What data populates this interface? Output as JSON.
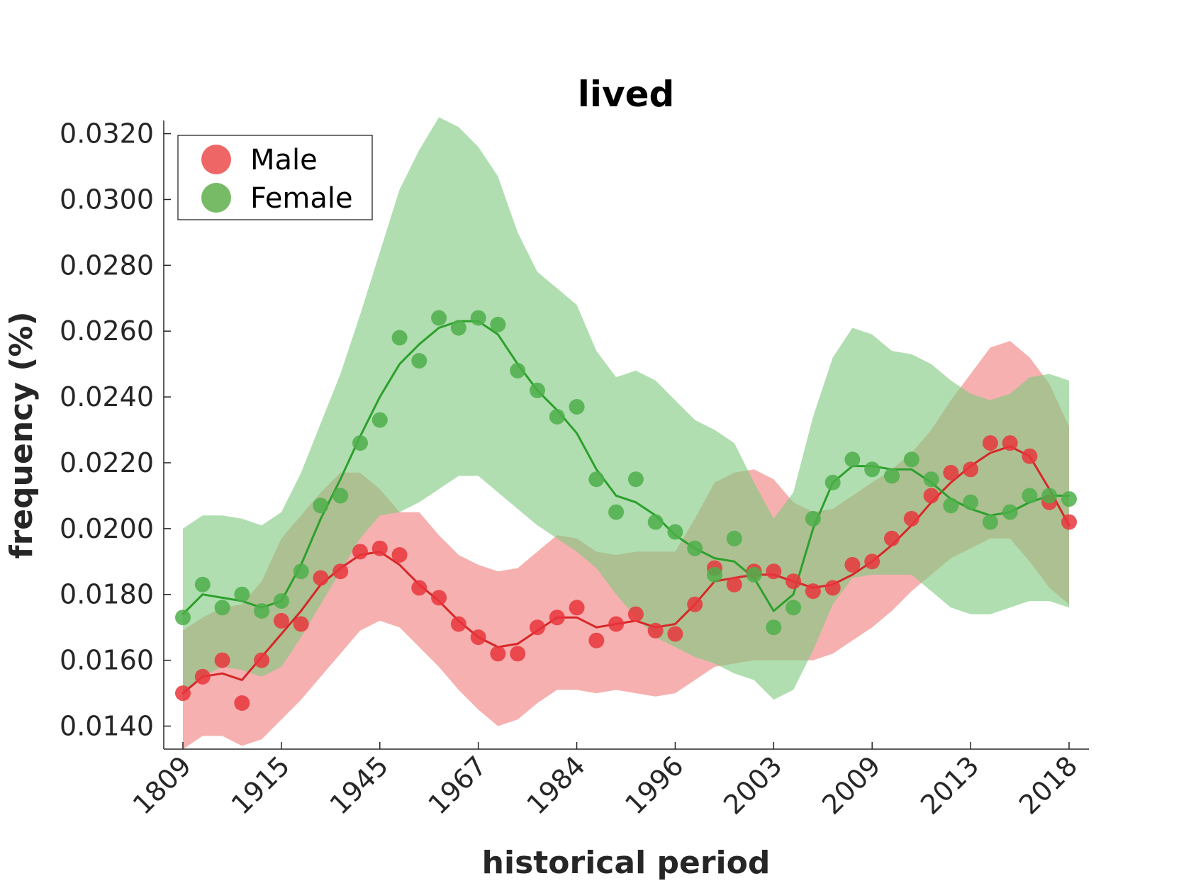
{
  "chart_data": {
    "type": "line",
    "title": "lived",
    "xlabel": "historical period",
    "ylabel": "frequency (%)",
    "ylim": [
      0.0133,
      0.0324
    ],
    "yticks": [
      "0.0140",
      "0.0160",
      "0.0180",
      "0.0200",
      "0.0220",
      "0.0240",
      "0.0260",
      "0.0280",
      "0.0300",
      "0.0320"
    ],
    "ytick_values": [
      0.014,
      0.016,
      0.018,
      0.02,
      0.022,
      0.024,
      0.026,
      0.028,
      0.03,
      0.032
    ],
    "xticks": [
      "1809",
      "1915",
      "1945",
      "1967",
      "1984",
      "1996",
      "2003",
      "2009",
      "2013",
      "2018"
    ],
    "xtick_index": [
      0,
      5,
      10,
      15,
      20,
      25,
      30,
      35,
      40,
      45
    ],
    "n_points": 46,
    "legend": {
      "position": "top-left",
      "entries": [
        "Male",
        "Female"
      ]
    },
    "grid": false,
    "colors": {
      "male_line": "#d62728",
      "male_point": "#e8363c",
      "male_band": "#f08080",
      "female_line": "#2ca02c",
      "female_point": "#4daf4a",
      "female_band": "#7fc97f",
      "legend_male": "#ee6666",
      "legend_female": "#77bb66"
    },
    "series": [
      {
        "name": "Male",
        "points": [
          0.015,
          0.0155,
          0.016,
          0.0147,
          0.016,
          0.0172,
          0.0171,
          0.0185,
          0.0187,
          0.0193,
          0.0194,
          0.0192,
          0.0182,
          0.0179,
          0.0171,
          0.0167,
          0.0162,
          0.0162,
          0.017,
          0.0173,
          0.0176,
          0.0166,
          0.0171,
          0.0174,
          0.0169,
          0.0168,
          0.0177,
          0.0188,
          0.0183,
          0.0187,
          0.0187,
          0.0184,
          0.0181,
          0.0182,
          0.0189,
          0.019,
          0.0197,
          0.0203,
          0.021,
          0.0217,
          0.0218,
          0.0226,
          0.0226,
          0.0222,
          0.0208,
          0.0202
        ],
        "smooth": [
          0.015,
          0.0155,
          0.0156,
          0.0154,
          0.0161,
          0.0168,
          0.0175,
          0.0183,
          0.0188,
          0.0192,
          0.0193,
          0.0189,
          0.0183,
          0.0178,
          0.0172,
          0.0167,
          0.0164,
          0.0165,
          0.0169,
          0.0173,
          0.0173,
          0.017,
          0.0171,
          0.0172,
          0.017,
          0.0171,
          0.0177,
          0.0184,
          0.0185,
          0.0186,
          0.0186,
          0.0184,
          0.0182,
          0.0183,
          0.0186,
          0.019,
          0.0195,
          0.0201,
          0.0208,
          0.0214,
          0.0219,
          0.0223,
          0.0225,
          0.0222,
          0.0212,
          0.0201
        ],
        "upper": [
          0.0169,
          0.0173,
          0.0176,
          0.0177,
          0.0184,
          0.0197,
          0.0204,
          0.0211,
          0.0217,
          0.0217,
          0.0212,
          0.0205,
          0.0205,
          0.0198,
          0.0192,
          0.0189,
          0.0187,
          0.0188,
          0.0193,
          0.0198,
          0.0197,
          0.0193,
          0.0192,
          0.0193,
          0.0193,
          0.0193,
          0.0203,
          0.0214,
          0.0217,
          0.0218,
          0.0215,
          0.0208,
          0.0205,
          0.0206,
          0.021,
          0.0214,
          0.0218,
          0.0223,
          0.023,
          0.0239,
          0.0247,
          0.0255,
          0.0257,
          0.0252,
          0.0244,
          0.0231
        ],
        "lower": [
          0.0133,
          0.0137,
          0.0137,
          0.0134,
          0.0136,
          0.0142,
          0.0148,
          0.0155,
          0.0162,
          0.0169,
          0.0172,
          0.017,
          0.0164,
          0.0158,
          0.0151,
          0.0145,
          0.014,
          0.0142,
          0.0147,
          0.0151,
          0.0151,
          0.015,
          0.0151,
          0.015,
          0.0149,
          0.015,
          0.0154,
          0.0158,
          0.0159,
          0.016,
          0.016,
          0.016,
          0.016,
          0.0162,
          0.0166,
          0.017,
          0.0175,
          0.0181,
          0.0186,
          0.0191,
          0.0194,
          0.0197,
          0.0197,
          0.019,
          0.0182,
          0.0177
        ]
      },
      {
        "name": "Female",
        "points": [
          0.0173,
          0.0183,
          0.0176,
          0.018,
          0.0175,
          0.0178,
          0.0187,
          0.0207,
          0.021,
          0.0226,
          0.0233,
          0.0258,
          0.0251,
          0.0264,
          0.0261,
          0.0264,
          0.0262,
          0.0248,
          0.0242,
          0.0234,
          0.0237,
          0.0215,
          0.0205,
          0.0215,
          0.0202,
          0.0199,
          0.0194,
          0.0186,
          0.0197,
          0.0186,
          0.017,
          0.0176,
          0.0203,
          0.0214,
          0.0221,
          0.0218,
          0.0216,
          0.0221,
          0.0215,
          0.0207,
          0.0208,
          0.0202,
          0.0205,
          0.021,
          0.021,
          0.0209
        ],
        "smooth": [
          0.0174,
          0.018,
          0.0179,
          0.0178,
          0.0176,
          0.0178,
          0.0189,
          0.0203,
          0.0215,
          0.0228,
          0.024,
          0.025,
          0.0256,
          0.0261,
          0.0263,
          0.0263,
          0.0259,
          0.025,
          0.0242,
          0.0236,
          0.0229,
          0.0218,
          0.021,
          0.0208,
          0.0204,
          0.0198,
          0.0194,
          0.0191,
          0.019,
          0.0185,
          0.0175,
          0.018,
          0.02,
          0.0214,
          0.0219,
          0.0219,
          0.0218,
          0.0218,
          0.0214,
          0.0209,
          0.0206,
          0.0204,
          0.0205,
          0.0208,
          0.021,
          0.021
        ],
        "upper": [
          0.02,
          0.0204,
          0.0204,
          0.0203,
          0.0201,
          0.0205,
          0.0217,
          0.0232,
          0.0247,
          0.0265,
          0.0284,
          0.0303,
          0.0315,
          0.0325,
          0.0322,
          0.0316,
          0.0307,
          0.029,
          0.0278,
          0.0273,
          0.0268,
          0.0254,
          0.0246,
          0.0248,
          0.0245,
          0.0239,
          0.0233,
          0.023,
          0.0226,
          0.0214,
          0.0203,
          0.0211,
          0.0234,
          0.0252,
          0.0261,
          0.0259,
          0.0254,
          0.0253,
          0.025,
          0.0245,
          0.0241,
          0.0239,
          0.0241,
          0.0246,
          0.0247,
          0.0245
        ],
        "lower": [
          0.015,
          0.0155,
          0.0158,
          0.0157,
          0.0155,
          0.0158,
          0.0167,
          0.0177,
          0.0187,
          0.0197,
          0.0204,
          0.0205,
          0.0208,
          0.0212,
          0.0216,
          0.0216,
          0.0211,
          0.0206,
          0.0201,
          0.0197,
          0.0193,
          0.0188,
          0.018,
          0.0173,
          0.0167,
          0.0164,
          0.0161,
          0.0159,
          0.0156,
          0.0154,
          0.0148,
          0.0151,
          0.0163,
          0.0177,
          0.0185,
          0.0186,
          0.0186,
          0.0186,
          0.0181,
          0.0176,
          0.0174,
          0.0174,
          0.0176,
          0.0178,
          0.0178,
          0.0176
        ]
      }
    ]
  }
}
